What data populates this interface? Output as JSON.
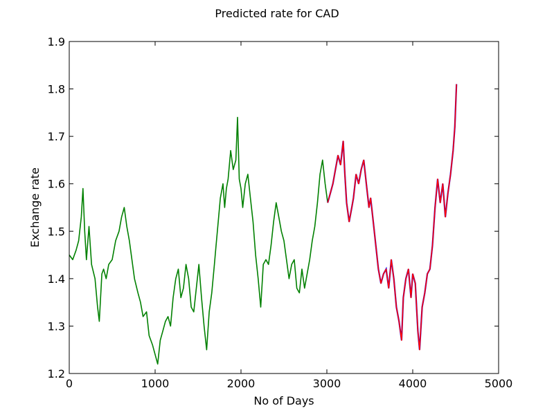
{
  "colors": {
    "background": "#ffffff",
    "axes": "#000000",
    "actual": "#008000",
    "predicted": "#ff0000",
    "predicted_edge": "#0000ff"
  },
  "chart_data": {
    "type": "line",
    "title": "Predicted rate for CAD",
    "xlabel": "No of Days",
    "ylabel": "Exchange rate",
    "xlim": [
      0,
      5000
    ],
    "ylim": [
      1.2,
      1.9
    ],
    "xticks": [
      "0",
      "1000",
      "2000",
      "3000",
      "4000",
      "5000"
    ],
    "yticks": [
      "1.2",
      "1.3",
      "1.4",
      "1.5",
      "1.6",
      "1.7",
      "1.8",
      "1.9"
    ],
    "grid": false,
    "legend": false,
    "series": [
      {
        "key": "actual",
        "x": [
          0,
          40,
          80,
          110,
          140,
          160,
          180,
          200,
          230,
          260,
          300,
          330,
          350,
          380,
          400,
          430,
          460,
          500,
          540,
          580,
          610,
          640,
          670,
          700,
          730,
          760,
          800,
          830,
          860,
          900,
          930,
          970,
          1000,
          1030,
          1060,
          1090,
          1120,
          1150,
          1180,
          1210,
          1240,
          1270,
          1300,
          1330,
          1360,
          1390,
          1420,
          1450,
          1480,
          1510,
          1540,
          1570,
          1600,
          1630,
          1660,
          1690,
          1710,
          1730,
          1760,
          1790,
          1810,
          1830,
          1850,
          1880,
          1910,
          1940,
          1960,
          1980,
          2000,
          2020,
          2050,
          2080,
          2110,
          2140,
          2170,
          2200,
          2230,
          2260,
          2290,
          2320,
          2350,
          2380,
          2410,
          2440,
          2470,
          2500,
          2530,
          2560,
          2590,
          2620,
          2650,
          2680,
          2710,
          2740,
          2770,
          2800,
          2830,
          2860,
          2890,
          2920,
          2950,
          2980,
          3010
        ],
        "y": [
          1.45,
          1.44,
          1.46,
          1.48,
          1.53,
          1.59,
          1.5,
          1.44,
          1.51,
          1.43,
          1.4,
          1.34,
          1.31,
          1.41,
          1.42,
          1.4,
          1.43,
          1.44,
          1.48,
          1.5,
          1.53,
          1.55,
          1.51,
          1.48,
          1.44,
          1.4,
          1.37,
          1.35,
          1.32,
          1.33,
          1.28,
          1.26,
          1.24,
          1.22,
          1.27,
          1.29,
          1.31,
          1.32,
          1.3,
          1.36,
          1.4,
          1.42,
          1.36,
          1.38,
          1.43,
          1.4,
          1.34,
          1.33,
          1.38,
          1.43,
          1.36,
          1.3,
          1.25,
          1.33,
          1.37,
          1.43,
          1.47,
          1.51,
          1.57,
          1.6,
          1.55,
          1.59,
          1.61,
          1.67,
          1.63,
          1.65,
          1.74,
          1.61,
          1.59,
          1.55,
          1.6,
          1.62,
          1.57,
          1.52,
          1.45,
          1.4,
          1.34,
          1.43,
          1.44,
          1.43,
          1.47,
          1.52,
          1.56,
          1.53,
          1.5,
          1.48,
          1.44,
          1.4,
          1.43,
          1.44,
          1.38,
          1.37,
          1.42,
          1.38,
          1.41,
          1.44,
          1.48,
          1.51,
          1.56,
          1.62,
          1.65,
          1.6,
          1.56
        ]
      },
      {
        "key": "predicted",
        "x": [
          3010,
          3040,
          3070,
          3100,
          3130,
          3160,
          3190,
          3210,
          3230,
          3260,
          3290,
          3310,
          3340,
          3370,
          3400,
          3430,
          3460,
          3490,
          3510,
          3540,
          3570,
          3600,
          3630,
          3660,
          3690,
          3720,
          3750,
          3780,
          3810,
          3840,
          3870,
          3890,
          3920,
          3950,
          3980,
          4000,
          4030,
          4060,
          4080,
          4110,
          4140,
          4170,
          4200,
          4230,
          4260,
          4290,
          4320,
          4350,
          4380,
          4410,
          4440,
          4470,
          4490,
          4510
        ],
        "y": [
          1.56,
          1.58,
          1.6,
          1.63,
          1.66,
          1.64,
          1.69,
          1.62,
          1.56,
          1.52,
          1.55,
          1.57,
          1.62,
          1.6,
          1.63,
          1.65,
          1.6,
          1.55,
          1.57,
          1.52,
          1.47,
          1.42,
          1.39,
          1.41,
          1.42,
          1.38,
          1.44,
          1.4,
          1.34,
          1.31,
          1.27,
          1.36,
          1.4,
          1.42,
          1.36,
          1.41,
          1.39,
          1.29,
          1.25,
          1.34,
          1.37,
          1.41,
          1.42,
          1.47,
          1.55,
          1.61,
          1.56,
          1.6,
          1.53,
          1.58,
          1.62,
          1.67,
          1.72,
          1.81
        ]
      }
    ]
  }
}
